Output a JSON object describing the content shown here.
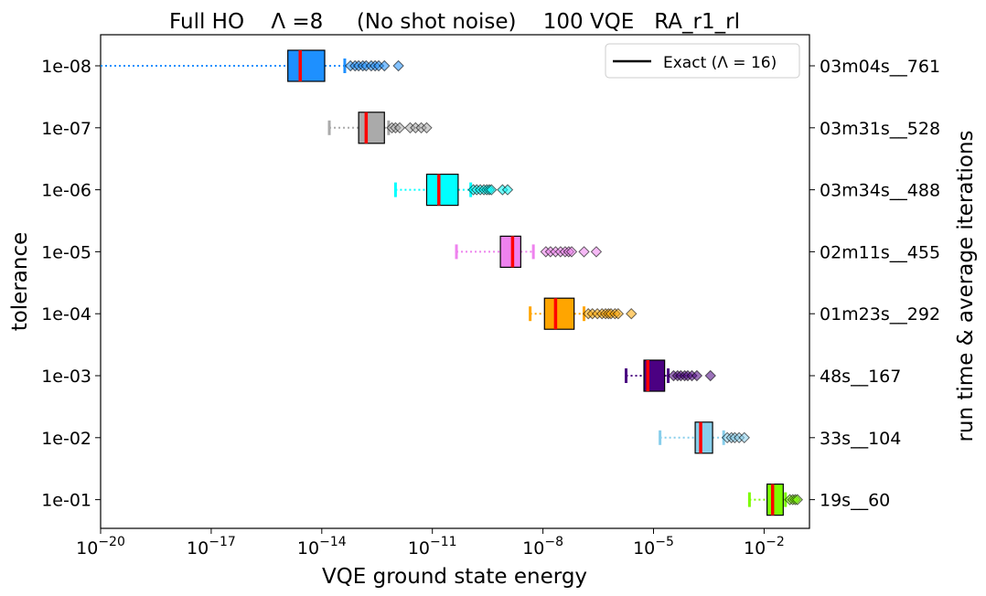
{
  "chart_data": {
    "type": "box",
    "title": "Full HO    Λ =8     (No shot noise)    100 VQE   RA_r1_rl",
    "xlabel": "VQE ground state energy",
    "ylabel": "tolerance",
    "ylabel_right": "run time & average iterations",
    "xscale": "log",
    "xlim": [
      1e-20,
      0.17
    ],
    "x_ticks": [
      {
        "value": 1e-20,
        "base": "10",
        "exp": "−20"
      },
      {
        "value": 1e-17,
        "base": "10",
        "exp": "−17"
      },
      {
        "value": 1e-14,
        "base": "10",
        "exp": "−14"
      },
      {
        "value": 1e-11,
        "base": "10",
        "exp": "−11"
      },
      {
        "value": 1e-08,
        "base": "10",
        "exp": "−8"
      },
      {
        "value": 1e-05,
        "base": "10",
        "exp": "−5"
      },
      {
        "value": 0.01,
        "base": "10",
        "exp": "−2"
      }
    ],
    "legend": {
      "placement": "top-right",
      "entries": [
        {
          "label": "Exact (Λ = 16)",
          "color": "#000000"
        }
      ]
    },
    "series": [
      {
        "tolerance": "1e-08",
        "right_label": "03m04s__761",
        "color": "#1e90ff",
        "whisker_low": 1e-20,
        "q1": 1.2e-15,
        "median": 2.6e-15,
        "q3": 1.2e-14,
        "whisker_high": 4.2e-14,
        "fliers": [
          6e-14,
          8e-14,
          1e-13,
          1.3e-13,
          1.6e-13,
          2.2e-13,
          2.8e-13,
          3.5e-13,
          5e-13,
          1.2e-12
        ]
      },
      {
        "tolerance": "1e-07",
        "right_label": "03m31s__528",
        "color": "#aaaaaa",
        "whisker_low": 1.6e-14,
        "q1": 1e-13,
        "median": 1.6e-13,
        "q3": 5e-13,
        "whisker_high": 6.5e-13,
        "fliers": [
          8e-13,
          1e-12,
          1.3e-12,
          2.5e-12,
          3.5e-12,
          5e-12,
          7e-12
        ]
      },
      {
        "tolerance": "1e-06",
        "right_label": "03m34s__488",
        "color": "#00ffff",
        "whisker_low": 1e-12,
        "q1": 7e-12,
        "median": 1.5e-11,
        "q3": 5e-11,
        "whisker_high": 1.1e-10,
        "fliers": [
          1.3e-10,
          1.6e-10,
          2e-10,
          2.5e-10,
          3e-10,
          3.5e-10,
          4e-10,
          8e-10,
          1.1e-09
        ]
      },
      {
        "tolerance": "1e-05",
        "right_label": "02m11s__455",
        "color": "#ee82ee",
        "whisker_low": 4.5e-11,
        "q1": 7e-10,
        "median": 1.5e-09,
        "q3": 2.5e-09,
        "whisker_high": 5.5e-09,
        "fliers": [
          1.2e-08,
          1.6e-08,
          2.2e-08,
          3e-08,
          4e-08,
          5e-08,
          6e-08,
          1.3e-07,
          2.8e-07
        ]
      },
      {
        "tolerance": "1e-04",
        "right_label": "01m23s__292",
        "color": "#ffa500",
        "whisker_low": 4.5e-09,
        "q1": 1.1e-08,
        "median": 2.2e-08,
        "q3": 7e-08,
        "whisker_high": 1.3e-07,
        "fliers": [
          1.7e-07,
          2.2e-07,
          3e-07,
          4e-07,
          5e-07,
          6e-07,
          7e-07,
          9e-07,
          1.1e-06,
          2.5e-06
        ]
      },
      {
        "tolerance": "1e-03",
        "right_label": "48s__167",
        "color": "#4b0082",
        "whisker_low": 1.8e-06,
        "q1": 5.5e-06,
        "median": 7e-06,
        "q3": 2e-05,
        "whisker_high": 2.5e-05,
        "fliers": [
          3.5e-05,
          4.5e-05,
          5.5e-05,
          7e-05,
          8.5e-05,
          0.00011,
          0.00015,
          0.00035
        ]
      },
      {
        "tolerance": "1e-02",
        "right_label": "33s__104",
        "color": "#87ceeb",
        "whisker_low": 1.5e-05,
        "q1": 0.000135,
        "median": 0.00019,
        "q3": 0.0004,
        "whisker_high": 0.0008,
        "fliers": [
          0.001,
          0.0013,
          0.0016,
          0.0021,
          0.0029
        ]
      },
      {
        "tolerance": "1e-01",
        "right_label": "19s__60",
        "color": "#7cfc00",
        "whisker_low": 0.004,
        "q1": 0.012,
        "median": 0.017,
        "q3": 0.033,
        "whisker_high": 0.038,
        "fliers": [
          0.05,
          0.06,
          0.07,
          0.08
        ]
      }
    ]
  }
}
